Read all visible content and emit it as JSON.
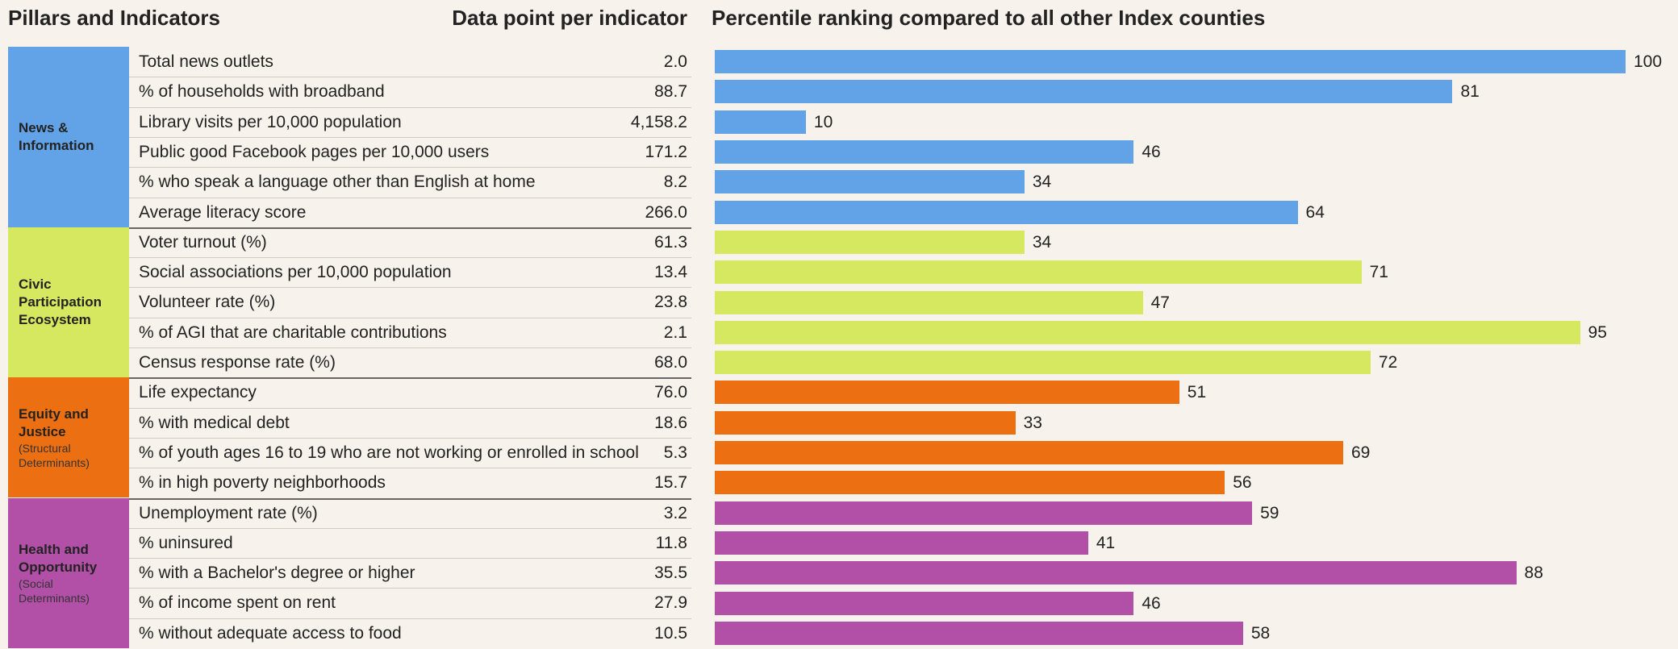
{
  "chart_data": {
    "type": "bar",
    "orientation": "horizontal",
    "title": "Percentile ranking compared to all other Index counties",
    "column_headers": [
      "Pillars and Indicators",
      "Data point per indicator"
    ],
    "xlim": [
      0,
      100
    ],
    "groups": [
      {
        "name": "News & Information",
        "color": "#62a3e8",
        "categories": [
          "Total news outlets",
          "% of households with broadband",
          "Library visits per 10,000 population",
          "Public good Facebook pages per 10,000 users",
          "% who speak a language other than English at home",
          "Average literacy score"
        ],
        "data_points": [
          "2.0",
          "88.7",
          "4,158.2",
          "171.2",
          "8.2",
          "266.0"
        ],
        "values": [
          100,
          81,
          10,
          46,
          34,
          64
        ]
      },
      {
        "name": "Civic Participation Ecosystem",
        "color": "#d6e85f",
        "categories": [
          "Voter turnout (%)",
          "Social associations per 10,000 population",
          "Volunteer rate (%)",
          "% of AGI that are charitable contributions",
          "Census response rate (%)"
        ],
        "data_points": [
          "61.3",
          "13.4",
          "23.8",
          "2.1",
          "68.0"
        ],
        "values": [
          34,
          71,
          47,
          95,
          72
        ]
      },
      {
        "name": "Equity and Justice",
        "note": "(Structural Determinants)",
        "color": "#ec6f12",
        "categories": [
          "Life expectancy",
          "% with medical debt",
          "% of youth ages 16 to 19 who are not working or enrolled in school",
          "% in high poverty neighborhoods"
        ],
        "data_points": [
          "76.0",
          "18.6",
          "5.3",
          "15.7"
        ],
        "values": [
          51,
          33,
          69,
          56
        ]
      },
      {
        "name": "Health and Opportunity",
        "note": "(Social Determinants)",
        "color": "#b24fa7",
        "categories": [
          "Unemployment rate (%)",
          "% uninsured",
          "% with a Bachelor's degree or higher",
          "% of income spent on rent",
          "% without adequate access to food"
        ],
        "data_points": [
          "3.2",
          "11.8",
          "35.5",
          "27.9",
          "10.5"
        ],
        "values": [
          59,
          41,
          88,
          46,
          58
        ]
      }
    ]
  }
}
